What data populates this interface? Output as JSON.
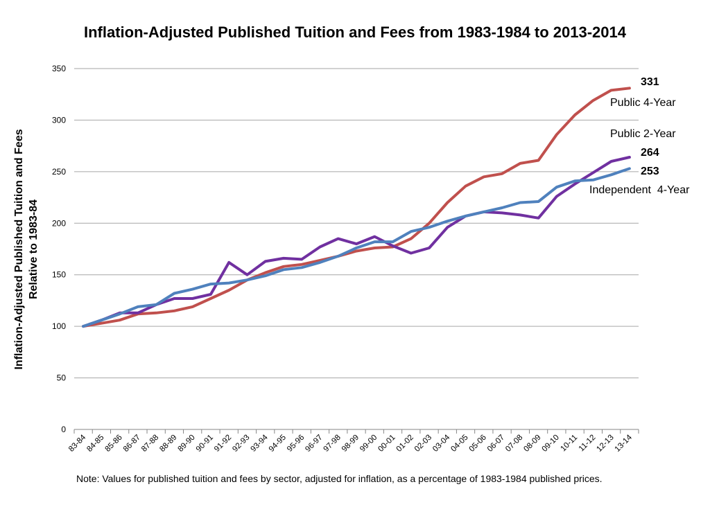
{
  "chart_data": {
    "type": "line",
    "title": "Inflation-Adjusted Published Tuition and Fees from 1983-1984 to 2013-2014",
    "ylabel_line1": "Inflation-Adjusted Published Tuition and Fees",
    "ylabel_line2": "Relative to 1983-84",
    "xlabel": "",
    "ylim": [
      0,
      350
    ],
    "yticks": [
      0,
      50,
      100,
      150,
      200,
      250,
      300,
      350
    ],
    "grid": true,
    "categories": [
      "83-84",
      "84-85",
      "85-86",
      "86-87",
      "87-88",
      "88-89",
      "89-90",
      "90-91",
      "91-92",
      "92-93",
      "93-94",
      "94-95",
      "95-96",
      "96-97",
      "97-98",
      "98-99",
      "99-00",
      "00-01",
      "01-02",
      "02-03",
      "03-04",
      "04-05",
      "05-06",
      "06-07",
      "07-08",
      "08-09",
      "09-10",
      "10-11",
      "11-12",
      "12-13",
      "13-14"
    ],
    "series": [
      {
        "name": "Public 4-Year",
        "end_value": "331",
        "color": "#c0504d",
        "values": [
          100,
          103,
          106,
          112,
          113,
          115,
          119,
          127,
          135,
          145,
          152,
          158,
          160,
          164,
          168,
          173,
          176,
          177,
          185,
          200,
          220,
          236,
          245,
          248,
          258,
          261,
          286,
          305,
          319,
          329,
          331
        ]
      },
      {
        "name": "Public 2-Year",
        "end_value": "264",
        "color": "#7030a0",
        "values": [
          100,
          106,
          113,
          113,
          121,
          127,
          127,
          131,
          162,
          150,
          163,
          166,
          165,
          177,
          185,
          180,
          187,
          178,
          171,
          176,
          196,
          207,
          211,
          210,
          208,
          205,
          226,
          238,
          249,
          260,
          264
        ]
      },
      {
        "name": "Independent  4-Year",
        "end_value": "253",
        "color": "#4f81bd",
        "values": [
          100,
          106,
          112,
          119,
          121,
          132,
          136,
          141,
          142,
          145,
          149,
          155,
          157,
          162,
          168,
          176,
          182,
          182,
          192,
          196,
          202,
          207,
          211,
          215,
          220,
          221,
          235,
          241,
          242,
          247,
          253
        ]
      }
    ]
  },
  "note": "Note: Values for published tuition and fees by sector, adjusted for inflation, as a percentage of 1983-1984 published prices."
}
